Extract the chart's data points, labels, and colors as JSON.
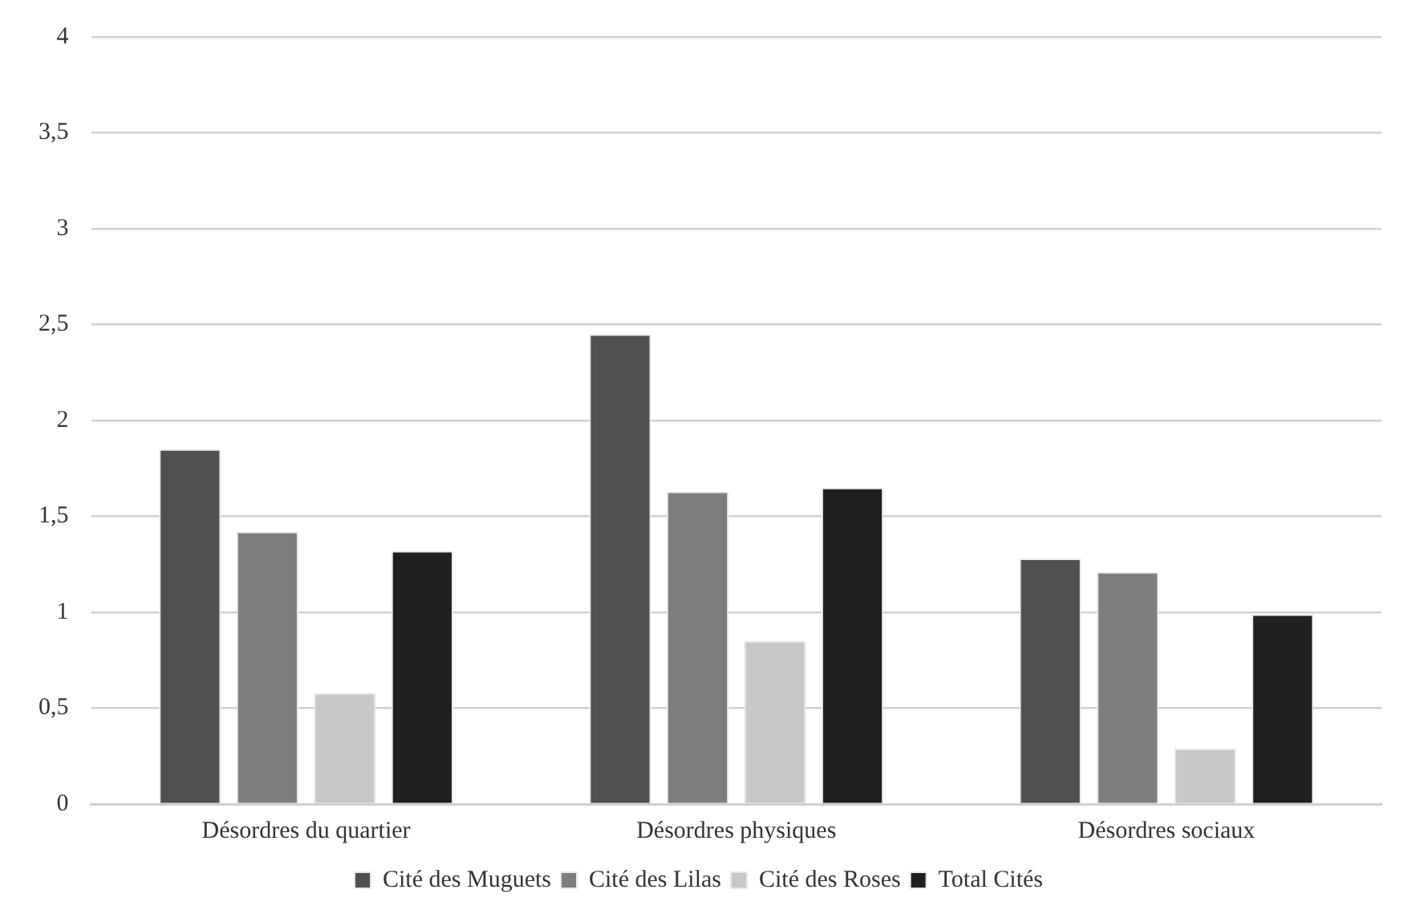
{
  "chart_data": {
    "type": "bar",
    "categories": [
      "Désordres du quartier",
      "Désordres physiques",
      "Désordres sociaux"
    ],
    "series": [
      {
        "name": "Cité des Muguets",
        "color": "#505050",
        "values": [
          1.85,
          2.45,
          1.28
        ]
      },
      {
        "name": "Cité des Lilas",
        "color": "#7d7d7d",
        "values": [
          1.42,
          1.63,
          1.21
        ]
      },
      {
        "name": "Cité des Roses",
        "color": "#c8c8c8",
        "values": [
          0.58,
          0.85,
          0.29
        ]
      },
      {
        "name": "Total Cités",
        "color": "#202020",
        "values": [
          1.32,
          1.65,
          0.99
        ]
      }
    ],
    "ylim": [
      0,
      4
    ],
    "yticks": [
      0,
      {
        "value": 0.5,
        "label": "0,5"
      },
      1,
      {
        "value": 1.5,
        "label": "1,5"
      },
      2,
      {
        "value": 2.5,
        "label": "2,5"
      },
      3,
      {
        "value": 3.5,
        "label": "3,5"
      },
      4
    ],
    "grid": "y",
    "legend": "bottom"
  }
}
